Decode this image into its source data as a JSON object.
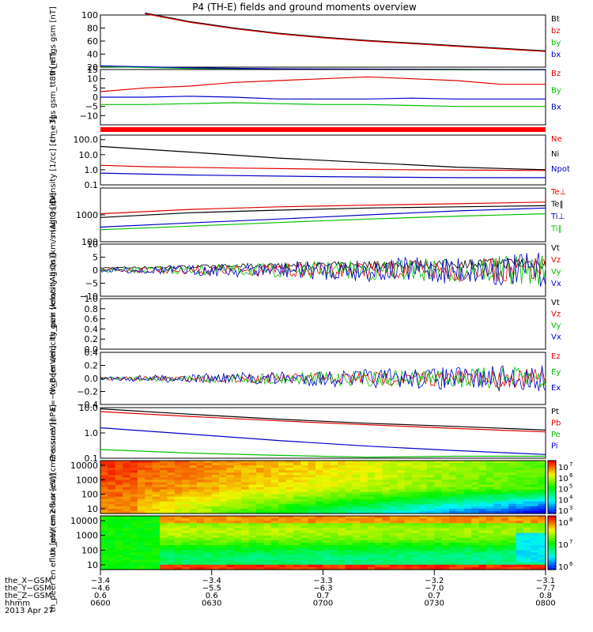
{
  "title": "P4 (TH-E) fields and ground moments overview",
  "date_label": "2013 Apr 27",
  "colorbars": [
    {
      "labels": [
        "10",
        "6",
        "10",
        "5",
        "10",
        "4",
        "10",
        "3"
      ],
      "exponents": [
        7,
        6,
        5,
        4,
        3
      ]
    },
    {
      "exponents": [
        8,
        7,
        6
      ]
    }
  ],
  "chart_data": [
    {
      "type": "line",
      "ylabel": "th_e fgs gsm [nT]",
      "ylim": [
        20,
        100
      ],
      "yticks": [
        "100",
        "80",
        "60",
        "40",
        "20"
      ],
      "legend": [
        {
          "name": "Bt",
          "color": "#000000"
        },
        {
          "name": "bz",
          "color": "#e00000"
        },
        {
          "name": "by",
          "color": "#00c000"
        },
        {
          "name": "bx",
          "color": "#0000c8"
        }
      ],
      "series": [
        {
          "name": "Bt",
          "color": "#000000",
          "x": [
            0.1,
            0.2,
            0.3,
            0.4,
            0.5,
            0.6,
            0.7,
            0.8,
            0.9,
            1.0
          ],
          "values": [
            103,
            90,
            80,
            72,
            66,
            61,
            57,
            53,
            49,
            45
          ]
        },
        {
          "name": "bz",
          "color": "#e00000",
          "x": [
            0.1,
            0.2,
            0.3,
            0.4,
            0.5,
            0.6,
            0.7,
            0.8,
            0.9,
            1.0
          ],
          "values": [
            102,
            89,
            79,
            71,
            65,
            60,
            56,
            52,
            48,
            44
          ]
        },
        {
          "name": "by",
          "color": "#00c000",
          "x": [
            0.0,
            0.2,
            0.4,
            0.6,
            0.8,
            1.0
          ],
          "values": [
            21,
            18,
            17,
            16.5,
            16,
            16
          ]
        },
        {
          "name": "bx",
          "color": "#0000c8",
          "x": [
            0.0,
            0.2,
            0.4,
            0.6,
            0.8,
            1.0
          ],
          "values": [
            22,
            19,
            17.5,
            17,
            16.5,
            16
          ]
        }
      ]
    },
    {
      "type": "line",
      "ylabel": "th_e fgs gsm_tt89 [nT]",
      "ylim": [
        -15,
        15
      ],
      "yticks": [
        "15",
        "10",
        "5",
        "0",
        "−5",
        "−10"
      ],
      "legend": [
        {
          "name": "Bz",
          "color": "#e00000"
        },
        {
          "name": "By",
          "color": "#00c000"
        },
        {
          "name": "Bx",
          "color": "#0000c8"
        }
      ],
      "series": [
        {
          "name": "Bz",
          "color": "#e00000",
          "x": [
            0,
            0.1,
            0.2,
            0.3,
            0.4,
            0.5,
            0.6,
            0.7,
            0.8,
            0.9,
            1.0
          ],
          "values": [
            3,
            5,
            6,
            8,
            9,
            10,
            11,
            10,
            9,
            7,
            7
          ]
        },
        {
          "name": "By",
          "color": "#00c000",
          "x": [
            0,
            0.1,
            0.2,
            0.3,
            0.4,
            0.5,
            0.6,
            0.7,
            0.8,
            0.9,
            1.0
          ],
          "values": [
            -4,
            -4,
            -3.5,
            -3,
            -3.5,
            -4,
            -4,
            -4.5,
            -5,
            -5,
            -5
          ]
        },
        {
          "name": "Bx",
          "color": "#0000c8",
          "x": [
            0,
            0.1,
            0.2,
            0.3,
            0.4,
            0.5,
            0.6,
            0.7,
            0.8,
            0.9,
            1.0
          ],
          "values": [
            0,
            0,
            0.5,
            0,
            -1,
            -1,
            -1,
            -0.5,
            -1,
            -1,
            -1
          ]
        }
      ]
    },
    {
      "type": "line",
      "ylabel": "Density [1/cc] [cm−3]",
      "scale": "log",
      "ylim": [
        0.1,
        200
      ],
      "yticks": [
        "100.0",
        "10.0",
        "1.0",
        "0.1"
      ],
      "legend": [
        {
          "name": "Ne",
          "color": "#e00000"
        },
        {
          "name": "Ni",
          "color": "#000000"
        },
        {
          "name": "Npot",
          "color": "#0000c8"
        }
      ],
      "series": [
        {
          "name": "Ni",
          "color": "#000000",
          "x": [
            0,
            0.2,
            0.4,
            0.6,
            0.8,
            1.0
          ],
          "values": [
            35,
            15,
            6,
            3,
            1.5,
            1.0
          ]
        },
        {
          "name": "Ne",
          "color": "#e00000",
          "x": [
            0,
            0.1,
            0.3,
            0.5,
            0.7,
            1.0
          ],
          "values": [
            2.0,
            1.6,
            1.3,
            1.1,
            1.0,
            0.9
          ]
        },
        {
          "name": "Npot",
          "color": "#0000c8",
          "x": [
            0,
            0.2,
            0.5,
            0.8,
            1.0
          ],
          "values": [
            0.6,
            0.45,
            0.35,
            0.3,
            0.3
          ]
        }
      ]
    },
    {
      "type": "line",
      "ylabel": "magt3 [eV]",
      "scale": "log",
      "ylim": [
        100,
        10000
      ],
      "yticks": [
        "1000",
        "100"
      ],
      "legend": [
        {
          "name": "Te⊥",
          "color": "#e00000"
        },
        {
          "name": "Te‖",
          "color": "#000000"
        },
        {
          "name": "Ti⊥",
          "color": "#0000c8"
        },
        {
          "name": "Ti‖",
          "color": "#00c000"
        }
      ],
      "series": [
        {
          "name": "Te⊥",
          "color": "#e00000",
          "x": [
            0,
            0.2,
            0.4,
            0.6,
            0.8,
            1.0
          ],
          "values": [
            1100,
            1600,
            2000,
            2300,
            2600,
            3000
          ]
        },
        {
          "name": "Te‖",
          "color": "#000000",
          "x": [
            0,
            0.2,
            0.4,
            0.6,
            0.8,
            1.0
          ],
          "values": [
            800,
            1200,
            1500,
            1800,
            2000,
            2200
          ]
        },
        {
          "name": "Ti⊥",
          "color": "#0000c8",
          "x": [
            0,
            0.2,
            0.4,
            0.6,
            0.8,
            1.0
          ],
          "values": [
            350,
            500,
            700,
            1000,
            1400,
            1800
          ]
        },
        {
          "name": "Ti‖",
          "color": "#00c000",
          "x": [
            0,
            0.2,
            0.4,
            0.6,
            0.8,
            1.0
          ],
          "values": [
            280,
            380,
            520,
            700,
            900,
            1100
          ]
        }
      ]
    },
    {
      "type": "line",
      "ylabel": "th_peir velocity gsm [km/s (All Qs)]",
      "ylim": [
        -10,
        10
      ],
      "yticks": [
        "10",
        "5",
        "0",
        "−5",
        "−10"
      ],
      "noisy": true,
      "legend": [
        {
          "name": "Vt",
          "color": "#000000"
        },
        {
          "name": "Vz",
          "color": "#e00000"
        },
        {
          "name": "Vy",
          "color": "#00c000"
        },
        {
          "name": "Vx",
          "color": "#0000c8"
        }
      ]
    },
    {
      "type": "line",
      "ylabel": "th_peer velocity gsm [km/s (All Qs)]",
      "ylim": [
        0,
        1
      ],
      "yticks": [
        "1.0",
        "0.8",
        "0.6",
        "0.4",
        "0.2",
        "0.0"
      ],
      "legend": [
        {
          "name": "Vt",
          "color": "#000000"
        },
        {
          "name": "Vz",
          "color": "#e00000"
        },
        {
          "name": "Vy",
          "color": "#00c000"
        },
        {
          "name": "Vx",
          "color": "#0000c8"
        }
      ]
    },
    {
      "type": "line",
      "ylabel": "E=−VxB [mV/m]",
      "ylim": [
        -0.4,
        0.4
      ],
      "yticks": [
        "0.4",
        "0.2",
        "0.0",
        "−0.2",
        "−0.4"
      ],
      "noisy": true,
      "legend": [
        {
          "name": "Ez",
          "color": "#e00000"
        },
        {
          "name": "Ey",
          "color": "#00c000"
        },
        {
          "name": "Ex",
          "color": "#0000c8"
        }
      ]
    },
    {
      "type": "line",
      "ylabel": "Pressure [nPa]",
      "scale": "log",
      "ylim": [
        0.1,
        10
      ],
      "yticks": [
        "10.0",
        "1.0",
        "0.1"
      ],
      "legend": [
        {
          "name": "Pt",
          "color": "#000000"
        },
        {
          "name": "Pb",
          "color": "#e00000"
        },
        {
          "name": "Pe",
          "color": "#00c000"
        },
        {
          "name": "Pi",
          "color": "#0000c8"
        }
      ],
      "series": [
        {
          "name": "Pt",
          "color": "#000000",
          "x": [
            0,
            0.2,
            0.4,
            0.6,
            0.8,
            1.0
          ],
          "values": [
            9,
            5.5,
            3.5,
            2.4,
            1.8,
            1.3
          ]
        },
        {
          "name": "Pb",
          "color": "#e00000",
          "x": [
            0,
            0.2,
            0.4,
            0.6,
            0.8,
            1.0
          ],
          "values": [
            7,
            4.5,
            3.0,
            2.1,
            1.5,
            1.1
          ]
        },
        {
          "name": "Pi",
          "color": "#0000c8",
          "x": [
            0,
            0.2,
            0.4,
            0.6,
            0.8,
            1.0
          ],
          "values": [
            1.6,
            0.9,
            0.5,
            0.3,
            0.2,
            0.14
          ]
        },
        {
          "name": "Pe",
          "color": "#00c000",
          "x": [
            0,
            0.2,
            0.4,
            0.6,
            0.8,
            1.0
          ],
          "values": [
            0.22,
            0.16,
            0.13,
            0.11,
            0.12,
            0.12
          ]
        }
      ]
    },
    {
      "type": "heatmap",
      "ylabel": "th_peir en eflux [eV/(cm2-s-sr-eV)]",
      "yticks": [
        "10000",
        "1000",
        "100",
        "10"
      ]
    },
    {
      "type": "heatmap",
      "ylabel": "th_peer en eflux [eV/(cm2-s-sr-eV)]",
      "yticks": [
        "10000",
        "1000",
        "100",
        "10"
      ]
    }
  ],
  "xaxis": {
    "rows": [
      {
        "label": "the_X−GSM",
        "values": [
          "−3.4",
          "−3.4",
          "−3.3",
          "−3.2",
          "−3.1"
        ]
      },
      {
        "label": "the_Y−GSM",
        "values": [
          "−4.6",
          "−5.5",
          "−6.3",
          "−7.0",
          "−7.7"
        ]
      },
      {
        "label": "the_Z−GSM",
        "values": [
          "0.6",
          "0.6",
          "0.7",
          "0.7",
          "0.8"
        ]
      },
      {
        "label": "hhmm",
        "values": [
          "0600",
          "0630",
          "0700",
          "0730",
          "0800"
        ]
      }
    ]
  }
}
